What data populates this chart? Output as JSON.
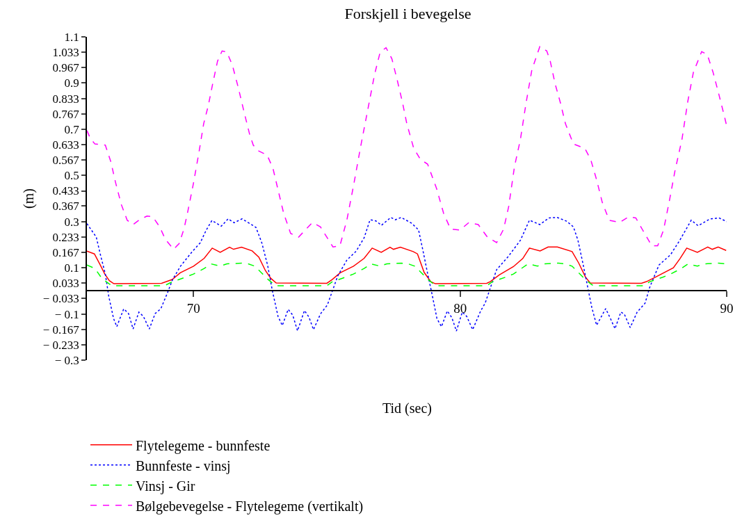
{
  "chart_data": {
    "type": "line",
    "title": "Forskjell i bevegelse",
    "xlabel": "Tid (sec)",
    "ylabel": "(m)",
    "xlim": [
      66,
      90
    ],
    "xticks": [
      70,
      80,
      90
    ],
    "ylim": [
      -0.3,
      1.1
    ],
    "yticks": [
      1.1,
      1.033,
      0.967,
      0.9,
      0.833,
      0.767,
      0.7,
      0.633,
      0.567,
      0.5,
      0.433,
      0.367,
      0.3,
      0.233,
      0.167,
      0.1,
      0.033,
      {
        "value": -0.033,
        "label": "− 0.033"
      },
      {
        "value": -0.1,
        "label": "− 0.1"
      },
      {
        "value": -0.167,
        "label": "− 0.167"
      },
      {
        "value": -0.233,
        "label": "− 0.233"
      },
      {
        "value": -0.3,
        "label": "− 0.3"
      }
    ],
    "grid": false,
    "legend": "bottom",
    "marker": "none",
    "series": [
      {
        "name": "Flytelegeme - bunnfeste",
        "color": "#ff0000",
        "line_style": "solid",
        "x": [
          66.0,
          66.28,
          66.5,
          66.67,
          66.84,
          67.01,
          68.8,
          69.2,
          69.5,
          70.0,
          70.4,
          70.7,
          71.0,
          71.35,
          71.5,
          71.8,
          72.2,
          72.45,
          72.7,
          72.9,
          73.1,
          75.0,
          75.2,
          75.5,
          76.0,
          76.4,
          76.7,
          77.04,
          77.37,
          77.5,
          77.76,
          78.24,
          78.4,
          78.65,
          78.9,
          79.07,
          81.0,
          81.13,
          81.47,
          82.0,
          82.35,
          82.6,
          83.0,
          83.3,
          83.65,
          84.2,
          84.45,
          84.7,
          84.88,
          86.8,
          86.99,
          87.34,
          88.0,
          88.25,
          88.5,
          88.9,
          89.29,
          89.46,
          89.68,
          89.98
        ],
        "values": [
          0.172,
          0.16,
          0.112,
          0.073,
          0.044,
          0.031,
          0.033,
          0.049,
          0.078,
          0.107,
          0.141,
          0.185,
          0.167,
          0.189,
          0.18,
          0.189,
          0.173,
          0.146,
          0.087,
          0.054,
          0.034,
          0.033,
          0.049,
          0.078,
          0.107,
          0.141,
          0.185,
          0.167,
          0.189,
          0.18,
          0.189,
          0.17,
          0.16,
          0.08,
          0.04,
          0.031,
          0.033,
          0.04,
          0.069,
          0.105,
          0.14,
          0.185,
          0.173,
          0.19,
          0.19,
          0.17,
          0.12,
          0.06,
          0.034,
          0.033,
          0.04,
          0.06,
          0.1,
          0.14,
          0.185,
          0.167,
          0.19,
          0.18,
          0.19,
          0.175
        ]
      },
      {
        "name": "Bunnfeste - vinsj",
        "color": "#0000ff",
        "line_style": "dotted",
        "x": [
          66.0,
          66.35,
          66.52,
          66.69,
          66.82,
          67.0,
          67.12,
          67.38,
          67.56,
          67.73,
          67.95,
          68.12,
          68.34,
          68.56,
          68.77,
          69.03,
          69.21,
          69.51,
          69.95,
          70.25,
          70.47,
          70.69,
          71.04,
          71.3,
          71.52,
          71.82,
          72.13,
          72.34,
          72.56,
          72.78,
          72.95,
          73.17,
          73.33,
          73.55,
          73.72,
          73.9,
          74.16,
          74.33,
          74.5,
          74.76,
          75.02,
          75.2,
          75.41,
          75.75,
          76.1,
          76.4,
          76.62,
          76.84,
          77.05,
          77.4,
          77.57,
          77.79,
          78.18,
          78.44,
          78.61,
          78.78,
          78.96,
          79.13,
          79.3,
          79.52,
          79.69,
          79.86,
          80.08,
          80.25,
          80.47,
          80.77,
          80.94,
          81.11,
          81.37,
          81.82,
          82.26,
          82.6,
          82.99,
          83.34,
          83.64,
          83.99,
          84.25,
          84.42,
          84.6,
          84.77,
          84.94,
          85.12,
          85.46,
          85.64,
          85.81,
          86.03,
          86.16,
          86.38,
          86.64,
          86.94,
          87.11,
          87.46,
          87.89,
          88.24,
          88.67,
          88.93,
          89.36,
          89.71,
          90.0
        ],
        "values": [
          0.291,
          0.233,
          0.15,
          0.073,
          -0.024,
          -0.12,
          -0.155,
          -0.078,
          -0.098,
          -0.165,
          -0.092,
          -0.111,
          -0.165,
          -0.098,
          -0.078,
          -0.006,
          0.048,
          0.107,
          0.17,
          0.208,
          0.262,
          0.305,
          0.28,
          0.312,
          0.295,
          0.312,
          0.29,
          0.275,
          0.208,
          0.11,
          0.004,
          -0.111,
          -0.15,
          -0.08,
          -0.105,
          -0.173,
          -0.085,
          -0.114,
          -0.168,
          -0.1,
          -0.061,
          -0.003,
          0.065,
          0.133,
          0.172,
          0.23,
          0.308,
          0.303,
          0.284,
          0.318,
          0.308,
          0.318,
          0.293,
          0.264,
          0.172,
          0.075,
          -0.022,
          -0.12,
          -0.155,
          -0.087,
          -0.116,
          -0.174,
          -0.092,
          -0.111,
          -0.168,
          -0.087,
          -0.053,
          0.005,
          0.092,
          0.151,
          0.219,
          0.306,
          0.287,
          0.316,
          0.318,
          0.302,
          0.277,
          0.219,
          0.122,
          0.025,
          -0.072,
          -0.149,
          -0.077,
          -0.12,
          -0.164,
          -0.092,
          -0.101,
          -0.159,
          -0.092,
          -0.053,
          0.015,
          0.112,
          0.156,
          0.219,
          0.306,
          0.282,
          0.311,
          0.316,
          0.3
        ]
      },
      {
        "name": "Vinsj - Gir",
        "color": "#00ff00",
        "line_style": "dashed",
        "x": [
          66.0,
          66.3,
          66.56,
          66.84,
          66.95,
          68.9,
          69.2,
          69.7,
          70.0,
          70.4,
          70.65,
          71.0,
          71.25,
          71.8,
          72.05,
          72.3,
          72.55,
          72.8,
          73.0,
          73.1,
          75.0,
          75.2,
          75.7,
          76.0,
          76.4,
          76.65,
          77.0,
          77.25,
          77.8,
          78.05,
          78.3,
          78.55,
          78.8,
          79.0,
          79.1,
          81.0,
          81.2,
          81.7,
          82.0,
          82.3,
          82.55,
          82.9,
          83.15,
          83.7,
          83.95,
          84.2,
          84.45,
          84.7,
          84.9,
          85.0,
          86.9,
          87.1,
          87.6,
          87.9,
          88.3,
          88.55,
          88.9,
          89.15,
          89.7,
          90.0
        ],
        "values": [
          0.112,
          0.097,
          0.054,
          0.03,
          0.022,
          0.022,
          0.039,
          0.059,
          0.073,
          0.097,
          0.117,
          0.107,
          0.117,
          0.12,
          0.117,
          0.107,
          0.078,
          0.049,
          0.03,
          0.022,
          0.022,
          0.039,
          0.059,
          0.073,
          0.097,
          0.117,
          0.107,
          0.117,
          0.12,
          0.117,
          0.107,
          0.078,
          0.049,
          0.03,
          0.022,
          0.022,
          0.039,
          0.059,
          0.073,
          0.097,
          0.117,
          0.107,
          0.117,
          0.12,
          0.117,
          0.107,
          0.078,
          0.049,
          0.03,
          0.022,
          0.022,
          0.039,
          0.059,
          0.073,
          0.097,
          0.117,
          0.107,
          0.117,
          0.12,
          0.117
        ]
      },
      {
        "name": "Bølgebevegelse - Flytelegeme (vertikalt)",
        "color": "#ff00ff",
        "line_style": "dashed",
        "x": [
          66.0,
          66.13,
          66.3,
          66.69,
          66.9,
          67.07,
          67.29,
          67.51,
          67.73,
          67.95,
          68.25,
          68.47,
          68.73,
          68.94,
          69.25,
          69.46,
          69.64,
          69.77,
          69.99,
          70.2,
          70.38,
          70.55,
          70.72,
          70.9,
          71.07,
          71.25,
          71.46,
          71.68,
          71.9,
          72.11,
          72.24,
          72.42,
          72.76,
          72.98,
          73.16,
          73.38,
          73.64,
          73.94,
          74.46,
          74.76,
          75.23,
          75.49,
          75.75,
          76.01,
          76.27,
          76.53,
          76.79,
          77.0,
          77.22,
          77.44,
          77.65,
          77.83,
          78.0,
          78.26,
          78.52,
          78.78,
          79.12,
          79.38,
          79.64,
          79.99,
          80.33,
          80.68,
          81.02,
          81.37,
          81.63,
          81.82,
          82.04,
          82.26,
          82.47,
          82.69,
          82.99,
          83.25,
          83.38,
          83.56,
          83.77,
          83.95,
          84.25,
          84.68,
          84.9,
          85.12,
          85.33,
          85.59,
          85.98,
          86.33,
          86.59,
          86.85,
          87.19,
          87.41,
          87.63,
          87.84,
          88.06,
          88.32,
          88.54,
          88.75,
          89.06,
          89.27,
          89.49,
          89.71,
          89.92,
          90.0
        ],
        "values": [
          0.694,
          0.66,
          0.636,
          0.631,
          0.558,
          0.471,
          0.374,
          0.306,
          0.287,
          0.306,
          0.324,
          0.321,
          0.277,
          0.224,
          0.18,
          0.205,
          0.268,
          0.336,
          0.462,
          0.598,
          0.724,
          0.801,
          0.898,
          0.995,
          1.039,
          1.034,
          0.976,
          0.879,
          0.772,
          0.675,
          0.631,
          0.607,
          0.588,
          0.53,
          0.442,
          0.336,
          0.249,
          0.233,
          0.296,
          0.277,
          0.19,
          0.195,
          0.306,
          0.461,
          0.626,
          0.781,
          0.937,
          1.034,
          1.053,
          1.005,
          0.908,
          0.82,
          0.724,
          0.617,
          0.568,
          0.549,
          0.442,
          0.336,
          0.268,
          0.263,
          0.296,
          0.287,
          0.233,
          0.209,
          0.267,
          0.364,
          0.539,
          0.655,
          0.811,
          0.956,
          1.058,
          1.039,
          0.995,
          0.898,
          0.811,
          0.724,
          0.636,
          0.617,
          0.568,
          0.481,
          0.384,
          0.306,
          0.296,
          0.321,
          0.316,
          0.263,
          0.195,
          0.195,
          0.263,
          0.384,
          0.52,
          0.655,
          0.82,
          0.946,
          1.036,
          1.024,
          0.946,
          0.849,
          0.753,
          0.714
        ]
      }
    ]
  }
}
